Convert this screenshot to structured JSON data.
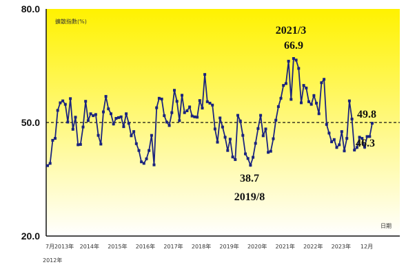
{
  "chart_data": {
    "type": "line",
    "title": "",
    "ylabel": "擴散指數(%)",
    "xlabel": "日期",
    "ylim": [
      20,
      80
    ],
    "yticks": [
      "20.0",
      "50.0",
      "80.0"
    ],
    "reference_line": 50,
    "x_tick_labels": [
      "7月",
      "2013年",
      "2014年",
      "2015年",
      "2016年",
      "2017年",
      "2018年",
      "2019年",
      "2020年",
      "2021年",
      "2022年",
      "2023年",
      "12月"
    ],
    "x_start_label": "2012年",
    "x_start": "2012/7",
    "x_end": "2023/12",
    "background_gradient": [
      "#fff200",
      "#ffffff"
    ],
    "series": [
      {
        "color": "#1a237e",
        "values": [
          38.6,
          39.2,
          45.3,
          45.8,
          53.2,
          55.2,
          55.7,
          54.8,
          50.1,
          56.3,
          48.2,
          51.4,
          44.1,
          44.2,
          48.8,
          55.6,
          50.5,
          52.3,
          51.8,
          52.1,
          46.6,
          44.3,
          52.8,
          56.9,
          53.6,
          52.3,
          49.6,
          51.1,
          51.3,
          51.5,
          48.9,
          52.3,
          49.8,
          46.5,
          47.6,
          44.4,
          42.6,
          39.6,
          39.2,
          40.4,
          42.6,
          46.6,
          38.8,
          53.9,
          56.4,
          56.2,
          51.8,
          50.1,
          49.2,
          52.6,
          58.5,
          55.6,
          50.5,
          57.2,
          52.6,
          53.1,
          54.1,
          51.7,
          51.5,
          51.4,
          55.8,
          53.8,
          62.7,
          55.5,
          55.1,
          54.6,
          48.3,
          44.8,
          51.2,
          48.8,
          46.1,
          42.6,
          45.6,
          40.9,
          40.2,
          51.9,
          50.4,
          46.6,
          41.7,
          40.5,
          38.7,
          40.8,
          44.5,
          48.4,
          51.9,
          46.5,
          48.3,
          42.1,
          42.4,
          45.7,
          50.6,
          54.2,
          56.4,
          59.8,
          60.3,
          66.2,
          56.1,
          66.9,
          66.5,
          64.3,
          55.2,
          59.8,
          59.1,
          55.5,
          54.8,
          57.1,
          55.1,
          52.3,
          60.5,
          61.4,
          49.5,
          47.2,
          44.9,
          45.5,
          43.4,
          44.1,
          47.6,
          42.5,
          45.8,
          55.7,
          50.9,
          42.7,
          43.4,
          46.1,
          45.8,
          43.5,
          46.3,
          46.3,
          49.8
        ]
      }
    ],
    "annotations": [
      {
        "line1": "2021/3",
        "line2": "66.9",
        "value": 66.9,
        "date": "2021/3"
      },
      {
        "line1": "38.7",
        "line2": "2019/8",
        "value": 38.7,
        "date": "2019/8"
      },
      {
        "line1": "49.8",
        "value": 49.8
      },
      {
        "line1": "46.3",
        "value": 46.3
      }
    ]
  }
}
